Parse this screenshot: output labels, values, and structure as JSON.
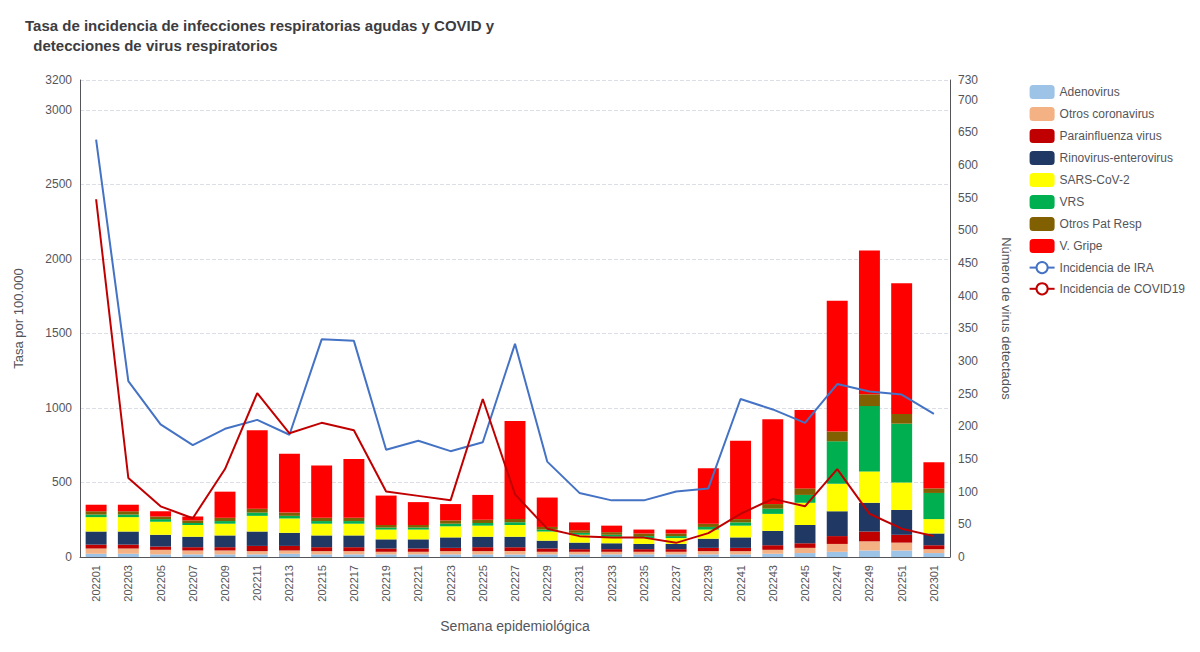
{
  "chart_data": {
    "type": "bar",
    "title": "Tasa de incidencia de infecciones respiratorias agudas y COVID y\n  detecciones de virus respiratorios",
    "x_label": "Semana epidemiológica",
    "y_label": "Tasa por 100.000",
    "y2_label": "Número de virus detectados",
    "categories": [
      "202201",
      "202203",
      "202205",
      "202207",
      "202209",
      "202211",
      "202213",
      "202215",
      "202217",
      "202219",
      "202221",
      "202223",
      "202225",
      "202227",
      "202229",
      "202231",
      "202233",
      "202235",
      "202237",
      "202239",
      "202241",
      "202243",
      "202245",
      "202247",
      "202249",
      "202251",
      "202301"
    ],
    "stacked": true,
    "grid": true,
    "legend": "upper right",
    "ylim": [
      0,
      3200
    ],
    "yticks": [
      0,
      500,
      1000,
      1500,
      2000,
      2500,
      3000
    ],
    "y2lim": [
      0,
      730
    ],
    "y2ticks": [
      0,
      50,
      100,
      150,
      200,
      250,
      300,
      350,
      400,
      450,
      500,
      550,
      600,
      650,
      700
    ],
    "series": [
      {
        "name": "Adenovirus",
        "type": "bar",
        "axis": "y2",
        "color": "#9DC3E6",
        "values": [
          5,
          5,
          4,
          4,
          4,
          4,
          5,
          4,
          4,
          4,
          4,
          4,
          4,
          4,
          4,
          4,
          4,
          4,
          4,
          4,
          4,
          5,
          6,
          8,
          10,
          10,
          6
        ]
      },
      {
        "name": "Otros coronavirus",
        "type": "bar",
        "axis": "y2",
        "color": "#F4B183",
        "values": [
          8,
          8,
          7,
          6,
          6,
          5,
          5,
          5,
          5,
          4,
          4,
          5,
          5,
          5,
          4,
          4,
          4,
          4,
          4,
          5,
          5,
          6,
          8,
          12,
          14,
          12,
          6
        ]
      },
      {
        "name": "Parainfluenza virus",
        "type": "bar",
        "axis": "y2",
        "color": "#C00000",
        "values": [
          6,
          6,
          5,
          5,
          5,
          8,
          7,
          6,
          6,
          5,
          5,
          5,
          6,
          6,
          5,
          4,
          4,
          4,
          4,
          5,
          5,
          7,
          7,
          12,
          15,
          12,
          6
        ]
      },
      {
        "name": "Rinovirus-enterovirus",
        "type": "bar",
        "axis": "y2",
        "color": "#1F3864",
        "values": [
          20,
          20,
          18,
          16,
          18,
          22,
          20,
          18,
          18,
          14,
          14,
          16,
          16,
          16,
          12,
          10,
          9,
          8,
          8,
          14,
          16,
          22,
          28,
          38,
          44,
          38,
          18
        ]
      },
      {
        "name": "SARS-CoV-2",
        "type": "bar",
        "axis": "y2",
        "color": "#FFFF00",
        "values": [
          22,
          22,
          20,
          18,
          18,
          24,
          22,
          18,
          18,
          15,
          15,
          17,
          17,
          18,
          14,
          12,
          10,
          9,
          9,
          14,
          18,
          26,
          34,
          42,
          48,
          42,
          22
        ]
      },
      {
        "name": "VRS",
        "type": "bar",
        "axis": "y2",
        "color": "#00B050",
        "values": [
          4,
          4,
          4,
          3,
          4,
          5,
          4,
          4,
          4,
          3,
          3,
          4,
          4,
          4,
          3,
          3,
          3,
          3,
          3,
          4,
          5,
          8,
          12,
          65,
          100,
          90,
          40
        ]
      },
      {
        "name": "Otros Pat Resp",
        "type": "bar",
        "axis": "y2",
        "color": "#806000",
        "values": [
          5,
          5,
          4,
          4,
          5,
          6,
          5,
          5,
          5,
          4,
          4,
          5,
          5,
          5,
          4,
          4,
          4,
          4,
          4,
          5,
          5,
          7,
          10,
          15,
          18,
          15,
          7
        ]
      },
      {
        "name": "V. Gripe",
        "type": "bar",
        "axis": "y2",
        "color": "#FF0000",
        "values": [
          10,
          10,
          8,
          6,
          40,
          120,
          90,
          80,
          90,
          45,
          35,
          25,
          38,
          150,
          45,
          12,
          10,
          6,
          6,
          85,
          120,
          130,
          120,
          200,
          220,
          200,
          40
        ]
      },
      {
        "name": "Incidencia de IRA",
        "type": "line",
        "axis": "y",
        "color": "#4472C4",
        "values": [
          2800,
          1180,
          890,
          750,
          860,
          920,
          820,
          1460,
          1450,
          720,
          780,
          710,
          770,
          1430,
          640,
          430,
          380,
          380,
          440,
          460,
          1060,
          990,
          900,
          1160,
          1110,
          1090,
          960
        ]
      },
      {
        "name": "Incidencia de COVID19",
        "type": "line",
        "axis": "y",
        "color": "#C00000",
        "values": [
          2400,
          530,
          340,
          260,
          590,
          1100,
          830,
          900,
          850,
          440,
          410,
          380,
          1060,
          420,
          190,
          140,
          130,
          130,
          95,
          160,
          290,
          390,
          340,
          590,
          290,
          190,
          140
        ]
      }
    ]
  }
}
